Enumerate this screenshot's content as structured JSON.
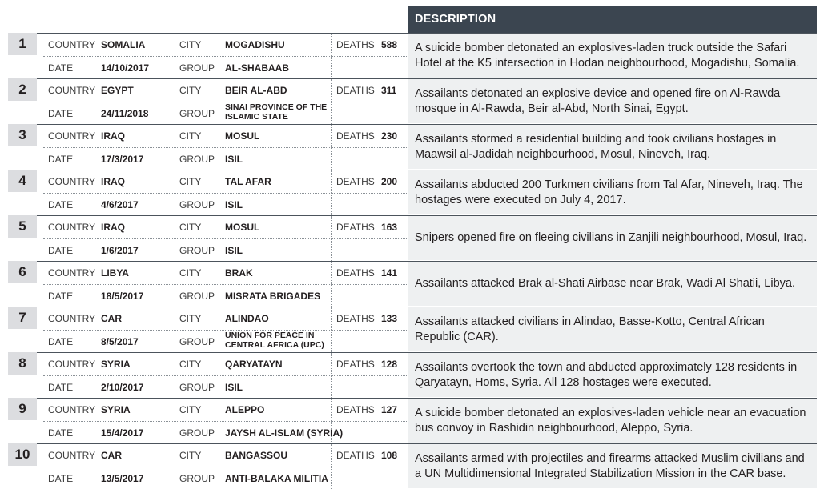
{
  "header": {
    "description": "DESCRIPTION"
  },
  "labels": {
    "country": "COUNTRY",
    "city": "CITY",
    "deaths": "DEATHS",
    "date": "DATE",
    "group": "GROUP"
  },
  "rows": [
    {
      "rank": "1",
      "country": "SOMALIA",
      "city": "MOGADISHU",
      "deaths": "588",
      "date": "14/10/2017",
      "group": "AL-SHABAAB",
      "description": "A suicide bomber detonated an explosives-laden truck outside the Safari Hotel at the K5 intersection in Hodan neighbourhood, Mogadishu, Somalia."
    },
    {
      "rank": "2",
      "country": "EGYPT",
      "city": "BEIR AL-ABD",
      "deaths": "311",
      "date": "24/11/2018",
      "group": "SINAI PROVINCE OF THE ISLAMIC STATE",
      "description": "Assailants detonated an explosive device and opened fire on Al-Rawda mosque in Al-Rawda, Beir al-Abd, North Sinai, Egypt."
    },
    {
      "rank": "3",
      "country": "IRAQ",
      "city": "MOSUL",
      "deaths": "230",
      "date": "17/3/2017",
      "group": "ISIL",
      "description": "Assailants stormed a residential building and took civilians hostages in Maawsil al-Jadidah neighbourhood, Mosul, Nineveh, Iraq."
    },
    {
      "rank": "4",
      "country": "IRAQ",
      "city": "TAL AFAR",
      "deaths": "200",
      "date": "4/6/2017",
      "group": "ISIL",
      "description": "Assailants abducted 200 Turkmen civilians from Tal Afar, Nineveh, Iraq. The hostages were executed on July 4, 2017."
    },
    {
      "rank": "5",
      "country": "IRAQ",
      "city": "MOSUL",
      "deaths": "163",
      "date": "1/6/2017",
      "group": "ISIL",
      "description": "Snipers opened fire on fleeing civilians in Zanjili neighbourhood, Mosul, Iraq."
    },
    {
      "rank": "6",
      "country": "LIBYA",
      "city": "BRAK",
      "deaths": "141",
      "date": "18/5/2017",
      "group": "MISRATA BRIGADES",
      "description": "Assailants attacked Brak al-Shati Airbase near Brak, Wadi Al Shatii, Libya."
    },
    {
      "rank": "7",
      "country": "CAR",
      "city": "ALINDAO",
      "deaths": "133",
      "date": "8/5/2017",
      "group": "UNION FOR PEACE IN CENTRAL AFRICA (UPC)",
      "description": "Assailants attacked civilians in Alindao, Basse-Kotto, Central African Republic (CAR)."
    },
    {
      "rank": "8",
      "country": "SYRIA",
      "city": "QARYATAYN",
      "deaths": "128",
      "date": "2/10/2017",
      "group": "ISIL",
      "description": "Assailants overtook the town and abducted approximately 128 residents in Qaryatayn, Homs, Syria. All 128 hostages were executed."
    },
    {
      "rank": "9",
      "country": "SYRIA",
      "city": "ALEPPO",
      "deaths": "127",
      "date": "15/4/2017",
      "group": "JAYSH AL-ISLAM (SYRIA)",
      "description": "A suicide bomber detonated an explosives-laden vehicle near an evacuation bus convoy in Rashidin neighbourhood, Aleppo, Syria."
    },
    {
      "rank": "10",
      "country": "CAR",
      "city": "BANGASSOU",
      "deaths": "108",
      "date": "13/5/2017",
      "group": "ANTI-BALAKA MILITIA",
      "description": "Assailants armed with projectiles and firearms attacked Muslim civilians and a UN Multidimensional Integrated Stabilization Mission in the CAR base."
    }
  ]
}
